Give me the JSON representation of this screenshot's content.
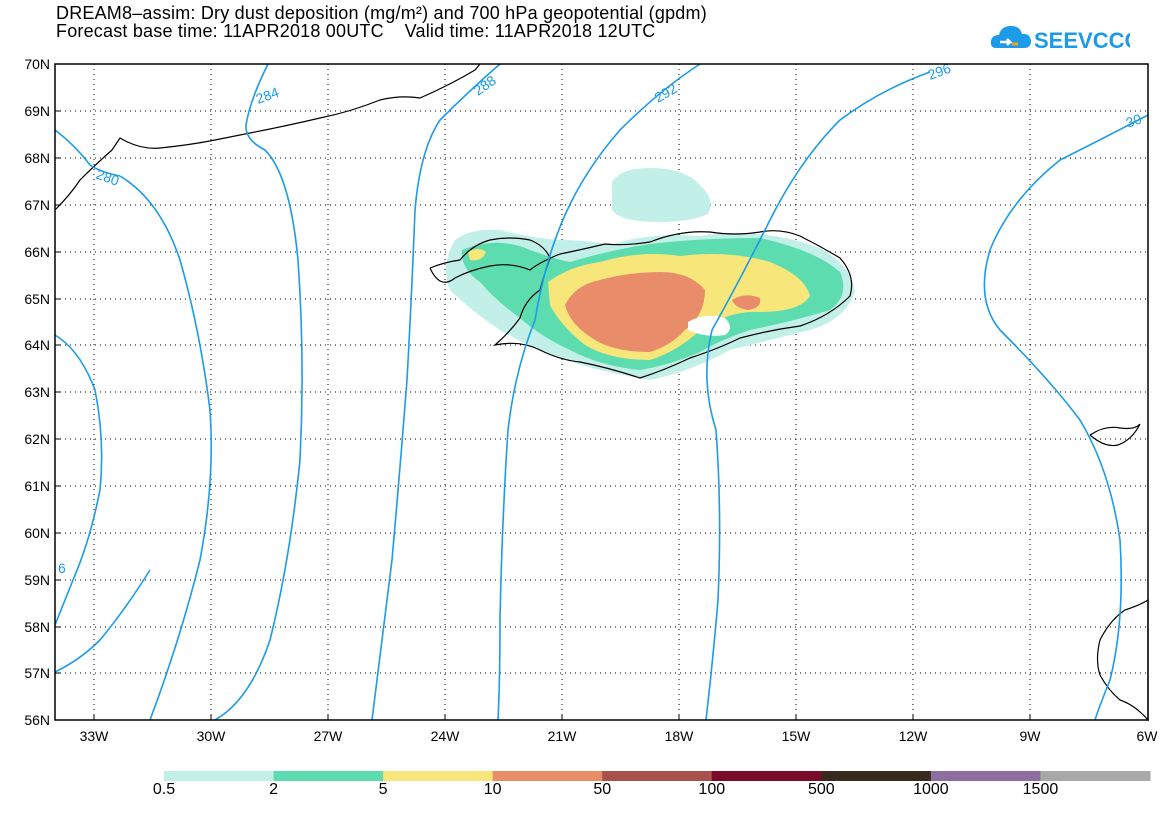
{
  "title_line1": "DREAM8–assim: Dry dust deposition (mg/m²) and 700 hPa geopotential (gpdm)",
  "title_line2": "Forecast base time: 11APR2018 00UTC    Valid time: 11APR2018 12UTC",
  "logo_text": "SEEVCCC",
  "lat_labels": [
    "70N",
    "69N",
    "68N",
    "67N",
    "66N",
    "65N",
    "64N",
    "63N",
    "62N",
    "61N",
    "60N",
    "59N",
    "58N",
    "57N",
    "56N"
  ],
  "lon_labels": [
    "33W",
    "30W",
    "27W",
    "24W",
    "21W",
    "18W",
    "15W",
    "12W",
    "9W",
    "6W"
  ],
  "contour_labels": [
    "280",
    "284",
    "288",
    "292",
    "296",
    "30",
    "6"
  ],
  "colorbar": {
    "labels": [
      "0.5",
      "2",
      "5",
      "10",
      "50",
      "100",
      "500",
      "1000",
      "1500"
    ],
    "colors": [
      "#c2f0e8",
      "#5ddcb0",
      "#f7e67a",
      "#e88c6a",
      "#a8504a",
      "#7a0a2a",
      "#3a2a1e",
      "#8e6ea0",
      "#a8a8a8"
    ]
  },
  "colors": {
    "contour": "#1c9be8",
    "coast": "#000000",
    "frame": "#000000"
  }
}
